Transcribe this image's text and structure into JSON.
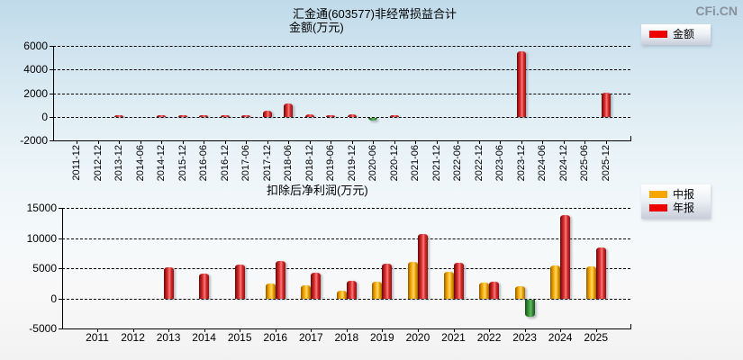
{
  "logo": "CFi.CN",
  "chart_data": [
    {
      "type": "bar",
      "title": "汇金通(603577)非经常损益合计",
      "ylabel": "金额(万元)",
      "grid": true,
      "legend_position": "top-right",
      "ylim": [
        -2000,
        6000
      ],
      "yticks": [
        6000,
        4000,
        2000,
        0,
        -2000
      ],
      "categories": [
        "2011-12",
        "2012-12",
        "2013-12",
        "2014-06",
        "2014-12",
        "2015-12",
        "2016-06",
        "2016-12",
        "2017-06",
        "2017-12",
        "2018-06",
        "2018-12",
        "2019-06",
        "2019-12",
        "2020-06",
        "2020-12",
        "2021-06",
        "2021-12",
        "2022-06",
        "2022-12",
        "2023-06",
        "2023-12",
        "2024-06",
        "2024-12",
        "2025-06",
        "2025-12"
      ],
      "series": [
        {
          "name": "金额",
          "color": "#ee0000",
          "negative_color": "#2e8b2e",
          "values": [
            null,
            null,
            120,
            null,
            120,
            120,
            100,
            120,
            120,
            550,
            1150,
            230,
            120,
            200,
            -200,
            100,
            null,
            null,
            null,
            null,
            null,
            5500,
            null,
            null,
            null,
            2050
          ]
        }
      ]
    },
    {
      "type": "bar",
      "title": "扣除后净利润(万元)",
      "ylabel": "",
      "grid": true,
      "legend_position": "top-right",
      "ylim": [
        -5000,
        15000
      ],
      "yticks": [
        15000,
        10000,
        5000,
        0,
        -5000
      ],
      "categories": [
        "2011",
        "2012",
        "2013",
        "2014",
        "2015",
        "2016",
        "2017",
        "2018",
        "2019",
        "2020",
        "2021",
        "2022",
        "2023",
        "2024",
        "2025"
      ],
      "series": [
        {
          "name": "中报",
          "color": "#f7a600",
          "negative_color": "#2e8b2e",
          "values": [
            null,
            null,
            null,
            null,
            null,
            2450,
            2150,
            1350,
            2750,
            6100,
            4400,
            2650,
            2100,
            5500,
            5350
          ]
        },
        {
          "name": "年报",
          "color": "#ee0000",
          "negative_color": "#2e8b2e",
          "values": [
            null,
            null,
            5200,
            4100,
            5650,
            6250,
            4300,
            2900,
            5800,
            10700,
            6000,
            2800,
            -2900,
            13800,
            8400
          ]
        }
      ]
    }
  ]
}
